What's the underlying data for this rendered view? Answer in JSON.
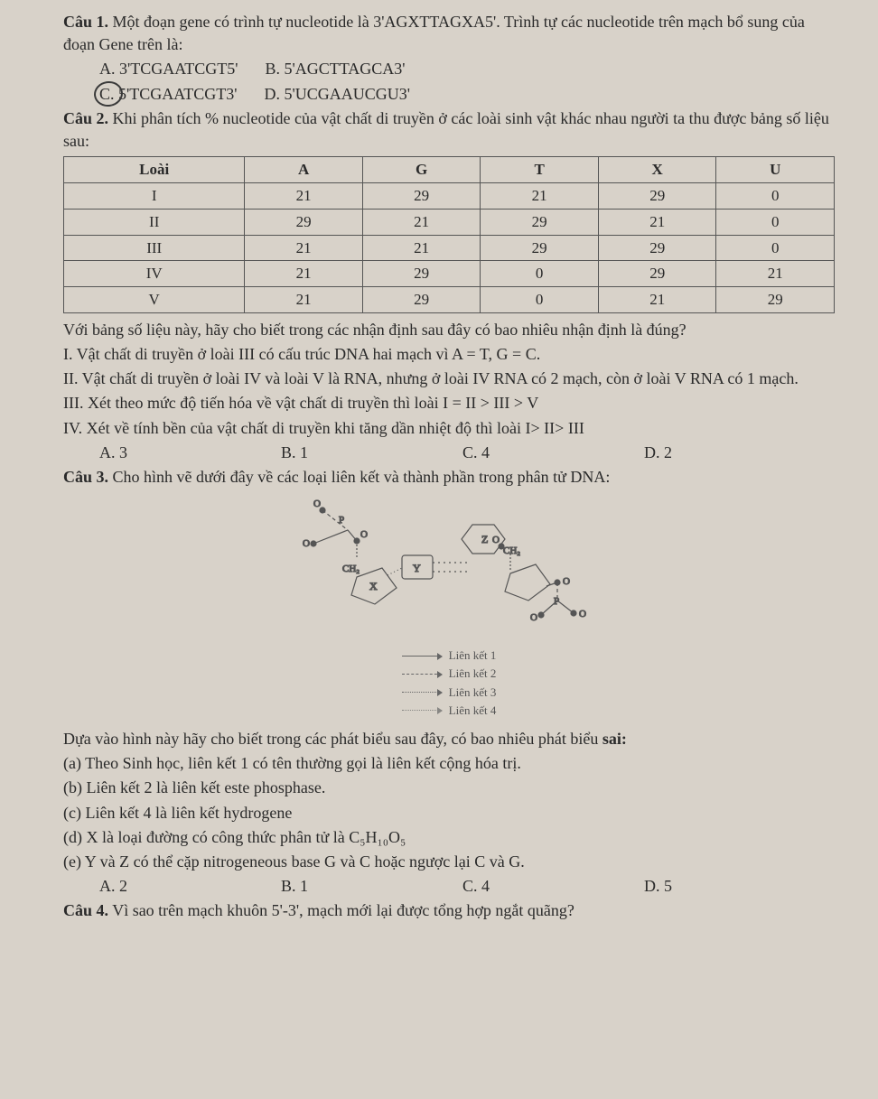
{
  "q1": {
    "title": "Câu 1.",
    "text": " Một đoạn gene có trình tự nucleotide là 3'AGXTTAGXA5'. Trình tự các nucleotide trên mạch bổ sung của đoạn Gene trên là:",
    "opts": {
      "A": "A. 3'TCGAATCGT5'",
      "B": "B. 5'AGCTTAGCA3'",
      "C": "C. 5'TCGAATCGT3'",
      "D": "D. 5'UCGAAUCGU3'"
    }
  },
  "q2": {
    "title": "Câu 2.",
    "text": " Khi phân tích % nucleotide của vật chất di truyền ở các loài sinh vật khác nhau người ta thu được bảng số liệu sau:",
    "table": {
      "headers": [
        "Loài",
        "A",
        "G",
        "T",
        "X",
        "U"
      ],
      "rows": [
        [
          "I",
          "21",
          "29",
          "21",
          "29",
          "0"
        ],
        [
          "II",
          "29",
          "21",
          "29",
          "21",
          "0"
        ],
        [
          "III",
          "21",
          "21",
          "29",
          "29",
          "0"
        ],
        [
          "IV",
          "21",
          "29",
          "0",
          "29",
          "21"
        ],
        [
          "V",
          "21",
          "29",
          "0",
          "21",
          "29"
        ]
      ]
    },
    "after": "Với bảng số liệu này, hãy cho biết trong các nhận định sau đây có bao nhiêu nhận định là đúng?",
    "stm": {
      "I": "I. Vật chất di truyền ở loài III có cấu trúc DNA hai mạch vì A = T, G = C.",
      "II": "II. Vật chất di truyền ở loài IV và loài V là RNA, nhưng ở loài IV RNA có 2 mạch, còn ở loài V RNA có 1 mạch.",
      "III": "III. Xét theo mức độ tiến hóa về vật chất di truyền thì loài I = II > III > V",
      "IV": "IV. Xét về tính bền của vật chất di truyền khi tăng dần nhiệt độ thì loài I> II> III"
    },
    "ans": {
      "A": "A. 3",
      "B": "B. 1",
      "C": "C. 4",
      "D": "D. 2"
    }
  },
  "q3": {
    "title": "Câu 3.",
    "text": " Cho hình vẽ dưới đây về các loại liên kết và thành phần trong phân tử DNA:",
    "diagram": {
      "labels": {
        "P": "P",
        "O": "O",
        "CH": "CH₂",
        "X": "X",
        "Y": "Y",
        "Z": "Z"
      },
      "legend": [
        {
          "style": "solid",
          "label": "Liên kết 1"
        },
        {
          "style": "dashed",
          "label": "Liên kết 2"
        },
        {
          "style": "dot2",
          "label": "Liên kết 3"
        },
        {
          "style": "dotwide",
          "label": "Liên kết 4"
        }
      ]
    },
    "prompt": "Dựa vào hình này hãy cho biết trong các phát biểu sau đây, có bao nhiêu phát biểu ",
    "prompt_bold": "sai:",
    "stm": {
      "a": "(a) Theo Sinh học, liên kết 1 có tên thường gọi là liên kết cộng hóa trị.",
      "b": "(b) Liên kết 2 là liên kết este phosphase.",
      "c": "(c) Liên kết 4 là liên kết hydrogene",
      "d": "(d) X là loại đường có công thức phân tử là C₅H₁₀O₅",
      "e": "(e) Y và Z có thể cặp nitrogeneous base G và C hoặc ngược lại C và G."
    },
    "ans": {
      "A": "A. 2",
      "B": "B. 1",
      "C": "C. 4",
      "D": "D. 5"
    }
  },
  "q4": {
    "title": "Câu 4.",
    "text": " Vì sao trên mạch khuôn 5'-3', mạch mới lại được tổng hợp ngắt quãng?"
  }
}
